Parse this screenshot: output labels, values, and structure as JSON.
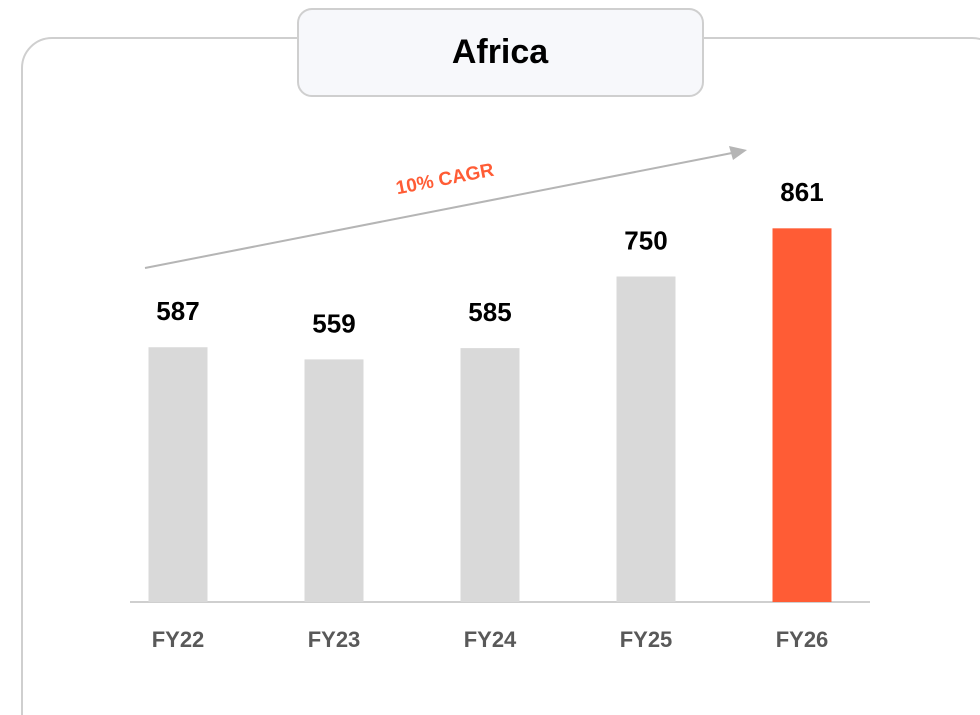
{
  "chart_data": {
    "type": "bar",
    "title": "Africa",
    "categories": [
      "FY22",
      "FY23",
      "FY24",
      "FY25",
      "FY26"
    ],
    "values": [
      587,
      559,
      585,
      750,
      861
    ],
    "colors": [
      "#d9d9d9",
      "#d9d9d9",
      "#d9d9d9",
      "#d9d9d9",
      "#ff5c35"
    ],
    "ylim": [
      0,
      1000
    ],
    "annotation": "10% CAGR"
  }
}
